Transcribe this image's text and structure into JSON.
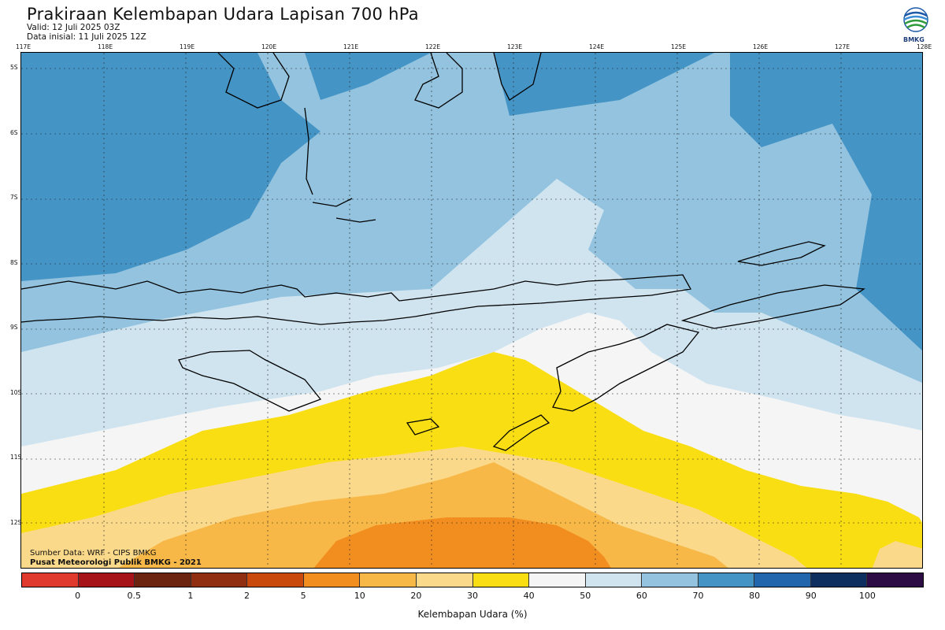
{
  "title": "Prakiraan Kelembapan Udara Lapisan 700 hPa",
  "valid": "Valid: 12 Juli 2025 03Z",
  "initial": "Data inisial: 11 Juli 2025 12Z",
  "logo_text": "BMKG",
  "source_line1": "Sumber Data: WRF - CIPS BMKG",
  "source_line2": "Pusat Meteorologi Publik BMKG - 2021",
  "colorbar_label": "Kelembapan Udara (%)",
  "lon_labels": [
    "117E",
    "118E",
    "119E",
    "120E",
    "121E",
    "122E",
    "123E",
    "124E",
    "125E",
    "126E",
    "127E",
    "128E"
  ],
  "lat_labels": [
    "5S",
    "6S",
    "7S",
    "8S",
    "9S",
    "10S",
    "11S",
    "12S"
  ],
  "colorbar_ticks": [
    "0",
    "0.5",
    "1",
    "2",
    "5",
    "10",
    "20",
    "30",
    "40",
    "50",
    "60",
    "70",
    "80",
    "90",
    "100"
  ],
  "colorbar_colors": [
    "#e03a2e",
    "#a6141a",
    "#6b2410",
    "#8f2e10",
    "#c9480c",
    "#f28e20",
    "#f8b848",
    "#fbd98a",
    "#f9de14",
    "#f5f5f5",
    "#d0e4f0",
    "#93c3de",
    "#4594c6",
    "#2266ad",
    "#0d2f5f",
    "#2d0c45"
  ],
  "map_colors": {
    "deep": "#2266ad",
    "blue": "#4594c6",
    "mid": "#93c3de",
    "light": "#d0e4f0",
    "white": "#f5f5f5",
    "yellow": "#f9de14",
    "cream": "#fbd98a",
    "tan": "#f8b848",
    "orange": "#f28e20"
  }
}
